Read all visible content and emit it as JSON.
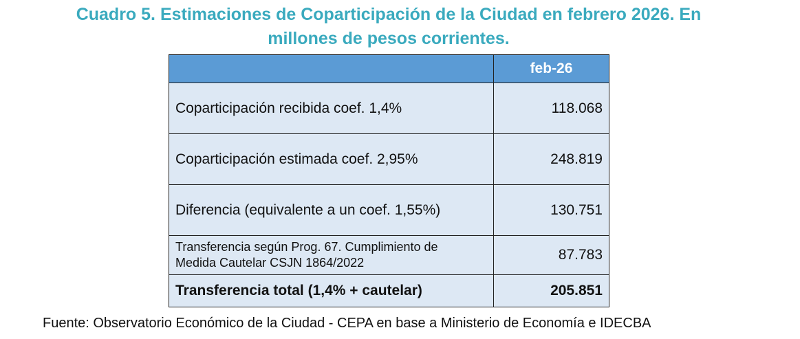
{
  "title_line1": "Cuadro 5. Estimaciones de Coparticipación de la Ciudad en febrero 2026. En",
  "title_line2": "millones de pesos corrientes.",
  "table": {
    "header": {
      "col1": "",
      "col2": "feb-26"
    },
    "rows": [
      {
        "label": "Coparticipación recibida coef. 1,4%",
        "value": "118.068"
      },
      {
        "label": "Coparticipación estimada coef. 2,95%",
        "value": "248.819"
      },
      {
        "label": "Diferencia (equivalente a un coef. 1,55%)",
        "value": "130.751"
      },
      {
        "label_line1": "Transferencia según Prog. 67. Cumplimiento de",
        "label_line2": "Medida Cautelar CSJN 1864/2022",
        "value": "87.783"
      },
      {
        "label": "Transferencia total (1,4% + cautelar)",
        "value": "205.851"
      }
    ],
    "colors": {
      "header_bg": "#5b9bd5",
      "cell_bg": "#dde8f4",
      "title": "#3aaabe"
    }
  },
  "source": "Fuente: Observatorio Económico de la Ciudad - CEPA en base a Ministerio de Economía e IDECBA"
}
